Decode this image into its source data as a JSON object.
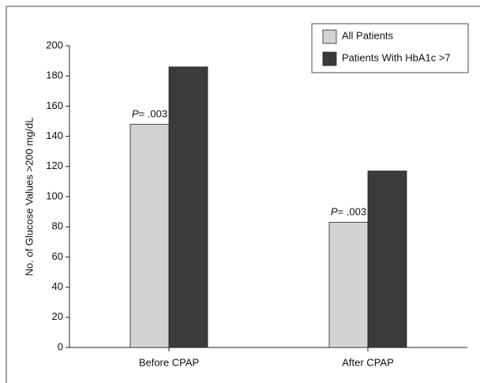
{
  "chart_data": {
    "type": "bar",
    "y_label": "No. of Glucose Values >200 mg/dL",
    "categories": [
      "Before CPAP",
      "After CPAP"
    ],
    "series": [
      {
        "name": "All Patients",
        "color": "#d3d3d3",
        "values": [
          148,
          83
        ]
      },
      {
        "name": "Patients With HbA1c >7",
        "color": "#3b3b3b",
        "values": [
          186,
          117
        ]
      }
    ],
    "annotations": [
      "P= .003",
      "P= .003"
    ],
    "ylim": [
      0,
      200
    ],
    "yticks": [
      0,
      20,
      40,
      60,
      80,
      100,
      120,
      140,
      160,
      180,
      200
    ],
    "grid": false,
    "legend": "top-right"
  }
}
